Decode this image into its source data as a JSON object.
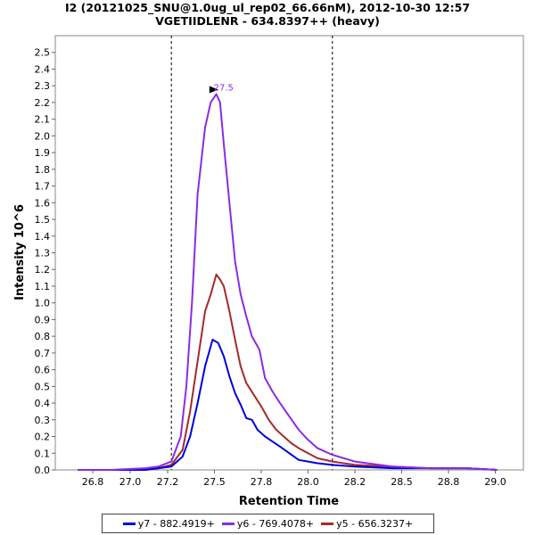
{
  "title_line1": "I2 (20121025_SNU@1.0ug_ul_rep02_66.66nM), 2012-10-30 12:57",
  "title_line2": "VGETIIDLENR - 634.8397++ (heavy)",
  "chart_data": {
    "type": "line",
    "title": "I2 (20121025_SNU@1.0ug_ul_rep02_66.66nM), 2012-10-30 12:57 / VGETIIDLENR - 634.8397++ (heavy)",
    "xlabel": "Retention Time",
    "ylabel": "Intensity 10^6",
    "xlim": [
      26.6,
      29.1
    ],
    "ylim": [
      0,
      2.6
    ],
    "x_ticks": [
      "26.8",
      "27.0",
      "27.2",
      "27.5",
      "27.8",
      "28.0",
      "28.2",
      "28.5",
      "28.8",
      "29.0"
    ],
    "y_ticks": [
      "0.0",
      "0.1",
      "0.2",
      "0.3",
      "0.4",
      "0.5",
      "0.6",
      "0.7",
      "0.8",
      "0.9",
      "1.0",
      "1.1",
      "1.2",
      "1.3",
      "1.4",
      "1.5",
      "1.6",
      "1.7",
      "1.8",
      "1.9",
      "2.0",
      "2.1",
      "2.2",
      "2.3",
      "2.4",
      "2.5"
    ],
    "boundaries": [
      27.22,
      28.08
    ],
    "peak_label": "27.5",
    "peak_x": 27.48,
    "peak_y": 2.25,
    "legend_position": "bottom",
    "series": [
      {
        "name": "y7 - 882.4919+",
        "color": "#0000e0",
        "x": [
          26.72,
          26.9,
          27.08,
          27.15,
          27.22,
          27.28,
          27.32,
          27.36,
          27.4,
          27.44,
          27.47,
          27.5,
          27.53,
          27.56,
          27.59,
          27.62,
          27.65,
          27.68,
          27.72,
          27.76,
          27.8,
          27.85,
          27.9,
          27.95,
          28.0,
          28.08,
          28.2,
          28.4,
          28.6,
          28.8,
          28.96
        ],
        "y": [
          0.0,
          0.0,
          0.0,
          0.01,
          0.02,
          0.08,
          0.2,
          0.4,
          0.62,
          0.78,
          0.76,
          0.68,
          0.56,
          0.46,
          0.39,
          0.31,
          0.3,
          0.24,
          0.2,
          0.17,
          0.14,
          0.1,
          0.06,
          0.05,
          0.04,
          0.03,
          0.02,
          0.01,
          0.01,
          0.01,
          0.0
        ]
      },
      {
        "name": "y6 - 769.4078+",
        "color": "#8b2be2",
        "x": [
          26.72,
          26.9,
          27.08,
          27.15,
          27.22,
          27.27,
          27.3,
          27.33,
          27.36,
          27.4,
          27.43,
          27.46,
          27.48,
          27.5,
          27.53,
          27.56,
          27.59,
          27.62,
          27.65,
          27.69,
          27.72,
          27.76,
          27.8,
          27.85,
          27.9,
          27.95,
          28.0,
          28.08,
          28.2,
          28.4,
          28.6,
          28.8,
          28.96
        ],
        "y": [
          0.0,
          0.0,
          0.01,
          0.02,
          0.05,
          0.2,
          0.5,
          1.0,
          1.65,
          2.05,
          2.2,
          2.25,
          2.2,
          1.95,
          1.6,
          1.25,
          1.05,
          0.92,
          0.8,
          0.72,
          0.55,
          0.47,
          0.4,
          0.32,
          0.24,
          0.18,
          0.13,
          0.09,
          0.05,
          0.02,
          0.01,
          0.01,
          0.0
        ]
      },
      {
        "name": "y5 - 656.3237+",
        "color": "#a52a2a",
        "x": [
          26.72,
          26.9,
          27.08,
          27.15,
          27.22,
          27.28,
          27.32,
          27.36,
          27.4,
          27.43,
          27.46,
          27.48,
          27.5,
          27.53,
          27.56,
          27.59,
          27.62,
          27.66,
          27.7,
          27.74,
          27.78,
          27.82,
          27.86,
          27.9,
          27.95,
          28.0,
          28.08,
          28.2,
          28.4,
          28.6,
          28.8,
          28.96
        ],
        "y": [
          0.0,
          0.0,
          0.0,
          0.01,
          0.03,
          0.12,
          0.35,
          0.65,
          0.95,
          1.05,
          1.17,
          1.14,
          1.1,
          0.95,
          0.78,
          0.62,
          0.52,
          0.45,
          0.38,
          0.3,
          0.24,
          0.2,
          0.16,
          0.13,
          0.1,
          0.07,
          0.05,
          0.03,
          0.02,
          0.01,
          0.01,
          0.0
        ]
      }
    ]
  }
}
